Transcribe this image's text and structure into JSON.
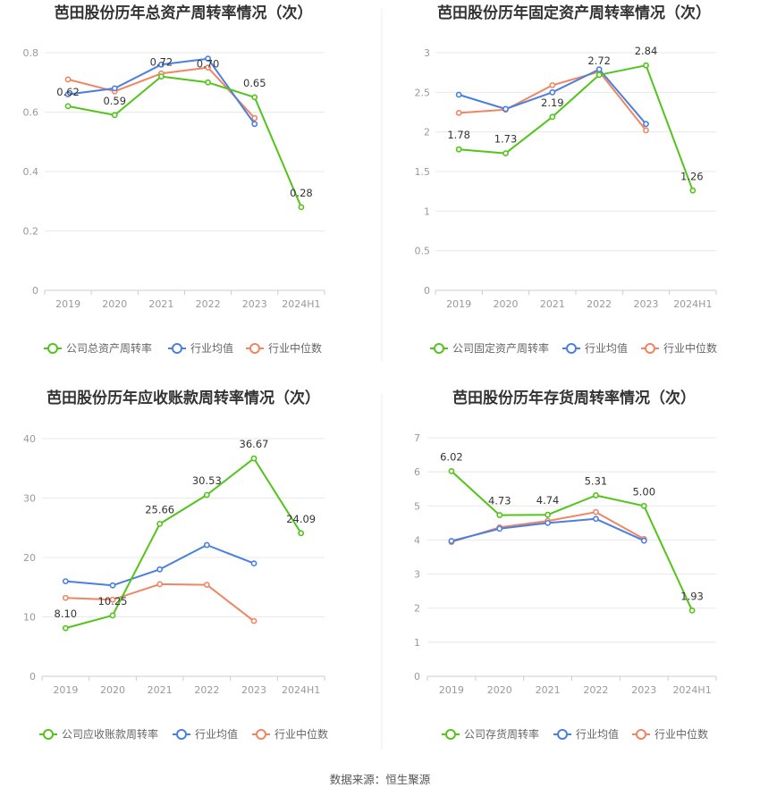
{
  "colors": {
    "company": "#52c41a",
    "avg": "#4a7fe0",
    "median": "#f08562",
    "grid": "#e8e8e8",
    "axis": "#cccccc"
  },
  "source": "数据来源：恒生聚源",
  "chart_data": [
    {
      "type": "line",
      "title": "芭田股份历年总资产周转率情况（次）",
      "categories": [
        "2019",
        "2020",
        "2021",
        "2022",
        "2023",
        "2024H1"
      ],
      "ylim": [
        0,
        0.8
      ],
      "yticks": [
        "0",
        "0.2",
        "0.4",
        "0.6",
        "0.8"
      ],
      "ytick_values": [
        0,
        0.2,
        0.4,
        0.6,
        0.8
      ],
      "legend": [
        "公司总资产周转率",
        "行业均值",
        "行业中位数"
      ],
      "series": [
        {
          "name": "公司总资产周转率",
          "key": "company",
          "values": [
            0.62,
            0.59,
            0.72,
            0.7,
            0.65,
            0.28
          ],
          "labels": [
            "0.62",
            "0.59",
            "0.72",
            "0.70",
            "0.65",
            "0.28"
          ]
        },
        {
          "name": "行业均值",
          "key": "avg",
          "values": [
            0.66,
            0.68,
            0.76,
            0.78,
            0.56,
            null
          ]
        },
        {
          "name": "行业中位数",
          "key": "median",
          "values": [
            0.71,
            0.67,
            0.73,
            0.75,
            0.58,
            null
          ]
        }
      ]
    },
    {
      "type": "line",
      "title": "芭田股份历年固定资产周转率情况（次）",
      "categories": [
        "2019",
        "2020",
        "2021",
        "2022",
        "2023",
        "2024H1"
      ],
      "ylim": [
        0,
        3
      ],
      "yticks": [
        "0",
        "0.5",
        "1",
        "1.5",
        "2",
        "2.5",
        "3"
      ],
      "ytick_values": [
        0,
        0.5,
        1,
        1.5,
        2,
        2.5,
        3
      ],
      "legend": [
        "公司固定资产周转率",
        "行业均值",
        "行业中位数"
      ],
      "series": [
        {
          "name": "公司固定资产周转率",
          "key": "company",
          "values": [
            1.78,
            1.73,
            2.19,
            2.72,
            2.84,
            1.26
          ],
          "labels": [
            "1.78",
            "1.73",
            "2.19",
            "2.72",
            "2.84",
            "1.26"
          ]
        },
        {
          "name": "行业均值",
          "key": "avg",
          "values": [
            2.47,
            2.29,
            2.5,
            2.79,
            2.1,
            null
          ]
        },
        {
          "name": "行业中位数",
          "key": "median",
          "values": [
            2.24,
            2.28,
            2.59,
            2.76,
            2.02,
            null
          ]
        }
      ]
    },
    {
      "type": "line",
      "title": "芭田股份历年应收账款周转率情况（次）",
      "categories": [
        "2019",
        "2020",
        "2021",
        "2022",
        "2023",
        "2024H1"
      ],
      "ylim": [
        0,
        40
      ],
      "yticks": [
        "0",
        "10",
        "20",
        "30",
        "40"
      ],
      "ytick_values": [
        0,
        10,
        20,
        30,
        40
      ],
      "legend": [
        "公司应收账款周转率",
        "行业均值",
        "行业中位数"
      ],
      "series": [
        {
          "name": "公司应收账款周转率",
          "key": "company",
          "values": [
            8.1,
            10.25,
            25.66,
            30.53,
            36.67,
            24.09
          ],
          "labels": [
            "8.10",
            "10.25",
            "25.66",
            "30.53",
            "36.67",
            "24.09"
          ]
        },
        {
          "name": "行业均值",
          "key": "avg",
          "values": [
            16.0,
            15.3,
            18.0,
            22.1,
            19.0,
            null
          ]
        },
        {
          "name": "行业中位数",
          "key": "median",
          "values": [
            13.2,
            12.9,
            15.5,
            15.4,
            9.3,
            null
          ]
        }
      ]
    },
    {
      "type": "line",
      "title": "芭田股份历年存货周转率情况（次）",
      "categories": [
        "2019",
        "2020",
        "2021",
        "2022",
        "2023",
        "2024H1"
      ],
      "ylim": [
        0,
        7
      ],
      "yticks": [
        "0",
        "1",
        "2",
        "3",
        "4",
        "5",
        "6",
        "7"
      ],
      "ytick_values": [
        0,
        1,
        2,
        3,
        4,
        5,
        6,
        7
      ],
      "legend": [
        "公司存货周转率",
        "行业均值",
        "行业中位数"
      ],
      "series": [
        {
          "name": "公司存货周转率",
          "key": "company",
          "values": [
            6.02,
            4.73,
            4.74,
            5.31,
            5.0,
            1.93
          ],
          "labels": [
            "6.02",
            "4.73",
            "4.74",
            "5.31",
            "5.00",
            "1.93"
          ]
        },
        {
          "name": "行业均值",
          "key": "avg",
          "values": [
            3.97,
            4.33,
            4.5,
            4.62,
            3.98,
            null
          ]
        },
        {
          "name": "行业中位数",
          "key": "median",
          "values": [
            3.94,
            4.37,
            4.56,
            4.82,
            4.03,
            null
          ]
        }
      ]
    }
  ]
}
